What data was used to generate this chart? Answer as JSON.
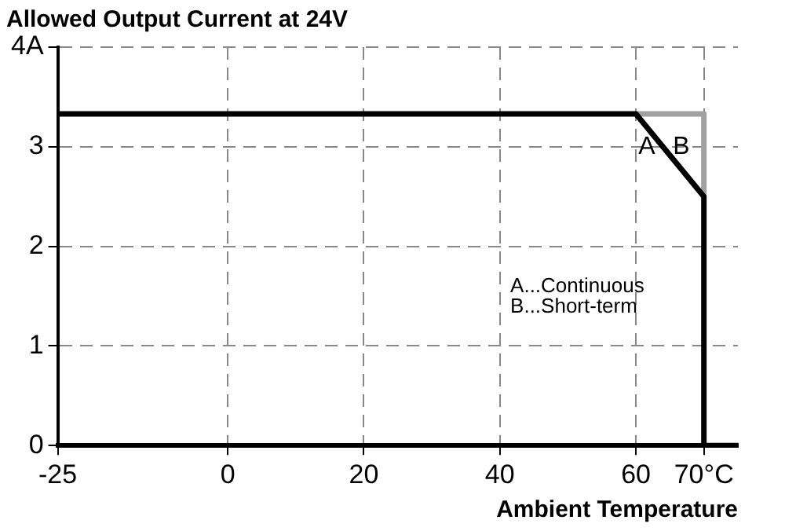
{
  "chart_data": {
    "type": "line",
    "title": "Allowed Output Current at 24V",
    "xlabel": "Ambient Temperature",
    "xlim": [
      -25,
      75
    ],
    "xticks": [
      -25,
      0,
      20,
      40,
      60,
      {
        "value": 70,
        "label": "70°C"
      }
    ],
    "ylim": [
      0,
      4
    ],
    "yticks": [
      0,
      1,
      2,
      3,
      {
        "value": 4,
        "label": "4A"
      }
    ],
    "grid": true,
    "legend": false,
    "marker": "none",
    "line_style": "solid",
    "series": [
      {
        "color": "#000000",
        "x": [
          -25,
          60,
          70,
          70,
          75
        ],
        "values": [
          3.33,
          3.33,
          2.5,
          0,
          0
        ]
      },
      {
        "color": "#a0a0a0",
        "x": [
          60,
          70,
          70
        ],
        "values": [
          3.33,
          3.33,
          2.5
        ]
      }
    ],
    "annotations": [
      "A",
      "B",
      "A...Continuous",
      "B...Short-term"
    ]
  }
}
